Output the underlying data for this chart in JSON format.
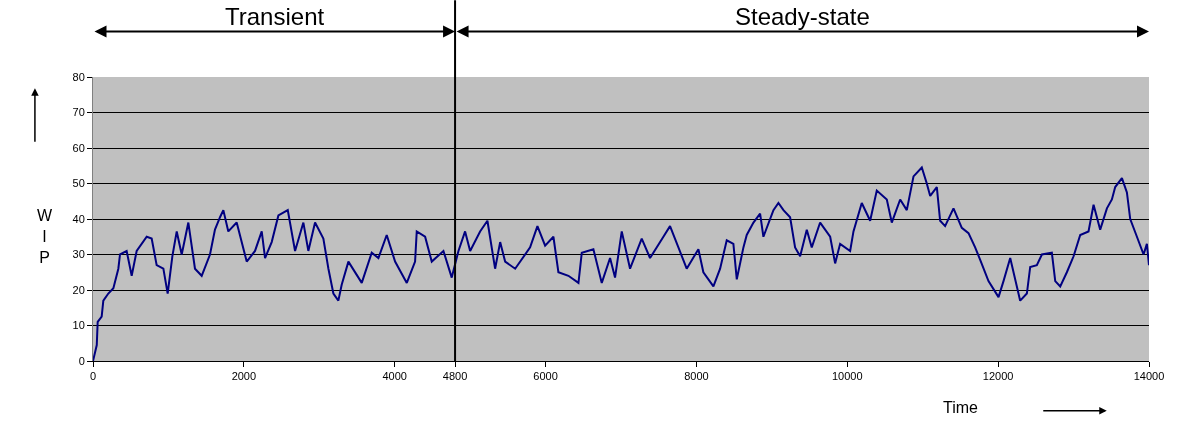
{
  "chart_data": {
    "type": "line",
    "xlabel": "Time",
    "ylabel": "WIP",
    "x": [
      0,
      50,
      62,
      115,
      137,
      203,
      270,
      336,
      358,
      446,
      513,
      579,
      712,
      778,
      844,
      933,
      990,
      1052,
      1110,
      1176,
      1264,
      1352,
      1441,
      1551,
      1617,
      1684,
      1728,
      1794,
      1905,
      2038,
      2148,
      2237,
      2281,
      2369,
      2458,
      2582,
      2679,
      2789,
      2855,
      2944,
      3054,
      3121,
      3187,
      3253,
      3297,
      3386,
      3563,
      3695,
      3784,
      3894,
      4005,
      4160,
      4270,
      4292,
      4403,
      4491,
      4646,
      4756,
      4845,
      4933,
      5000,
      5132,
      5229,
      5331,
      5398,
      5464,
      5597,
      5795,
      5892,
      5994,
      6104,
      6170,
      6303,
      6436,
      6480,
      6634,
      6745,
      6855,
      6921,
      7010,
      7120,
      7275,
      7385,
      7562,
      7650,
      7761,
      7871,
      8026,
      8092,
      8225,
      8314,
      8402,
      8490,
      8535,
      8623,
      8667,
      8756,
      8844,
      8888,
      9021,
      9087,
      9154,
      9242,
      9308,
      9375,
      9463,
      9529,
      9640,
      9773,
      9839,
      9905,
      10038,
      10082,
      10192,
      10303,
      10391,
      10524,
      10590,
      10701,
      10789,
      10878,
      10988,
      11054,
      11099,
      11187,
      11231,
      11297,
      11408,
      11518,
      11607,
      11695,
      11762,
      11872,
      12005,
      12071,
      12160,
      12248,
      12292,
      12381,
      12425,
      12513,
      12580,
      12712,
      12757,
      12823,
      12911,
      13000,
      13088,
      13198,
      13265,
      13353,
      13442,
      13508,
      13552,
      13641,
      13707,
      13751,
      13840,
      13928,
      13972,
      14000
    ],
    "series": [
      {
        "color": "#000080",
        "values": [
          0,
          4.5,
          11,
          12.5,
          17,
          19,
          20.5,
          26,
          30,
          31,
          24,
          31,
          35,
          34.5,
          27,
          26,
          19,
          29.5,
          36.5,
          30,
          39,
          26,
          24,
          30,
          37,
          40.5,
          42.5,
          36.5,
          39,
          28,
          31,
          36.5,
          29,
          33.5,
          41,
          42.5,
          31,
          39,
          31,
          39,
          34.5,
          26,
          19,
          17,
          21.5,
          28,
          22,
          30.5,
          29,
          35.5,
          28,
          22,
          28,
          36.5,
          35,
          28,
          31,
          23.5,
          31,
          36.5,
          31,
          36.5,
          39.5,
          26,
          33.5,
          28,
          26,
          32,
          38,
          32.5,
          35,
          25,
          24,
          22,
          30.5,
          31.5,
          22,
          29,
          23.5,
          36.5,
          26,
          34.5,
          29,
          35,
          38,
          32,
          26,
          31.5,
          25,
          21,
          26,
          34,
          33,
          23,
          32,
          35.5,
          39,
          41.5,
          35,
          42.5,
          44.5,
          42.5,
          40.5,
          32,
          29.5,
          37,
          32,
          39,
          35,
          27.5,
          33,
          31,
          36.5,
          44.5,
          39.5,
          48,
          45.5,
          39,
          45.5,
          42.5,
          52,
          54.5,
          50,
          46.5,
          49,
          39.5,
          38,
          43,
          37.5,
          36,
          32,
          28.5,
          22.5,
          18,
          22.5,
          29,
          21,
          17,
          19,
          26.5,
          27,
          30,
          30.5,
          22.5,
          21,
          25,
          29.5,
          35.5,
          36.5,
          44,
          37,
          43,
          45.5,
          49,
          51.5,
          47.5,
          40,
          35,
          30,
          33,
          27
        ]
      }
    ],
    "xlim": [
      0,
      14000
    ],
    "xticks": [
      0,
      2000,
      4000,
      4800,
      6000,
      8000,
      10000,
      12000,
      14000
    ],
    "ylim": [
      0,
      80
    ],
    "yticks": [
      0,
      10,
      20,
      30,
      40,
      50,
      60,
      70,
      80
    ],
    "grid": "y",
    "ref_lines": [
      {
        "axis": "x",
        "value": 4800,
        "color": "#000000"
      }
    ],
    "annotations": [
      "Transient",
      "Steady-state"
    ]
  }
}
